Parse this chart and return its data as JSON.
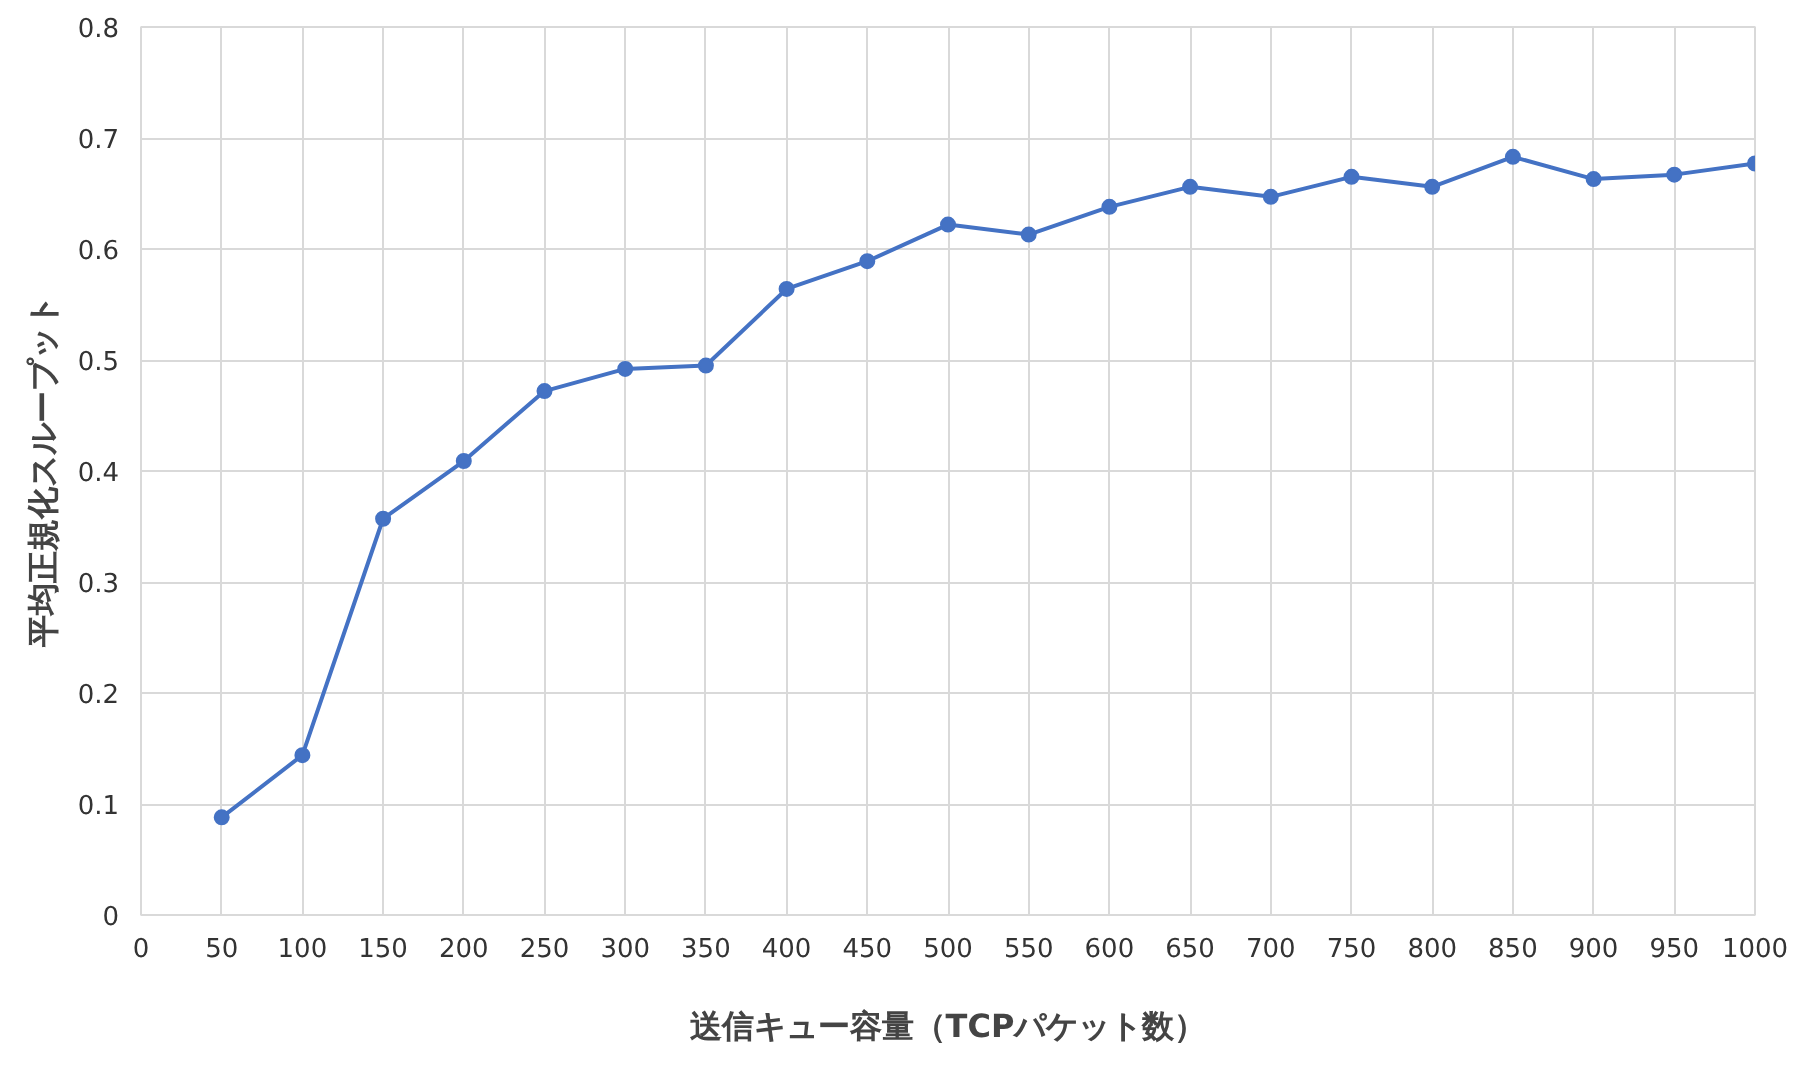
{
  "chart_data": {
    "type": "line",
    "xlabel": "送信キュー容量（TCPパケット数）",
    "ylabel": "平均正規化スループット",
    "x": [
      50,
      100,
      150,
      200,
      250,
      300,
      350,
      400,
      450,
      500,
      550,
      600,
      650,
      700,
      750,
      800,
      850,
      900,
      950,
      1000
    ],
    "series": [
      {
        "color": "#4472c4",
        "values": [
          0.088,
          0.144,
          0.357,
          0.409,
          0.472,
          0.492,
          0.495,
          0.564,
          0.589,
          0.622,
          0.613,
          0.638,
          0.656,
          0.647,
          0.665,
          0.656,
          0.683,
          0.663,
          0.667,
          0.677
        ]
      }
    ],
    "xlim": [
      0,
      1000
    ],
    "xticks": [
      0,
      50,
      100,
      150,
      200,
      250,
      300,
      350,
      400,
      450,
      500,
      550,
      600,
      650,
      700,
      750,
      800,
      850,
      900,
      950,
      1000
    ],
    "ylim": [
      0,
      0.8
    ],
    "yticks": [
      0,
      0.1,
      0.2,
      0.3,
      0.4,
      0.5,
      0.6,
      0.7,
      0.8
    ],
    "grid": true,
    "marker": "circle",
    "line_style": "solid"
  }
}
